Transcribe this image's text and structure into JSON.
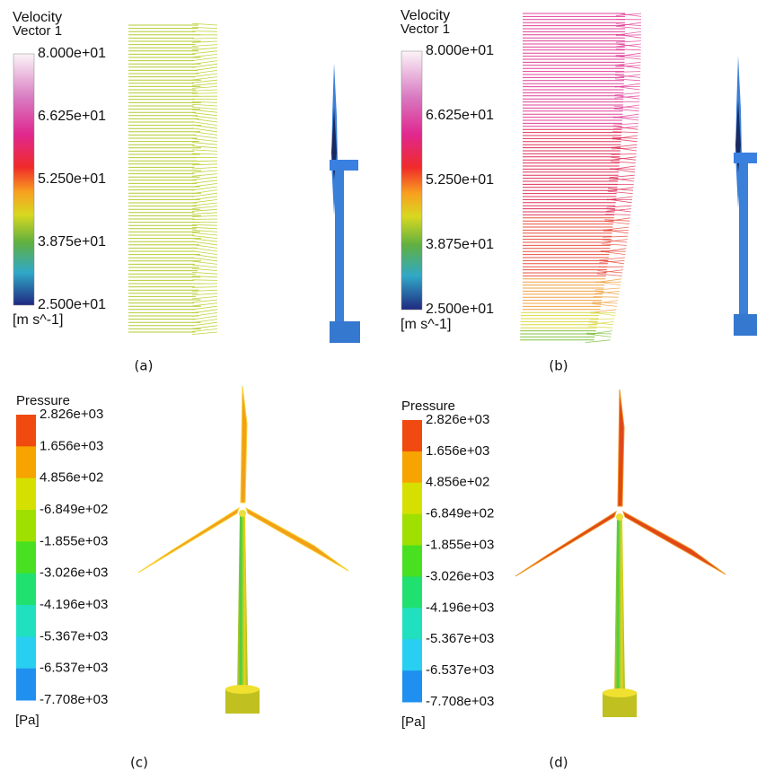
{
  "panels": [
    {
      "legend": {
        "title": [
          "Velocity",
          "Vector 1"
        ],
        "labels": [
          "8.000e+01",
          "6.625e+01",
          "5.250e+01",
          "3.875e+01",
          "2.500e+01"
        ],
        "unit": "[m s^-1]"
      },
      "caption": "(a)"
    },
    {
      "legend": {
        "title": [
          "Velocity",
          "Vector 1"
        ],
        "labels": [
          "8.000e+01",
          "6.625e+01",
          "5.250e+01",
          "3.875e+01",
          "2.500e+01"
        ],
        "unit": "[m s^-1]"
      },
      "caption": "(b)"
    },
    {
      "legend": {
        "title": [
          "Pressure"
        ],
        "labels": [
          "2.826e+03",
          "1.656e+03",
          "4.856e+02",
          "-6.849e+02",
          "-1.855e+03",
          "-3.026e+03",
          "-4.196e+03",
          "-5.367e+03",
          "-6.537e+03",
          "-7.708e+03"
        ],
        "unit": "[Pa]"
      },
      "caption": "(c)"
    },
    {
      "legend": {
        "title": [
          "Pressure"
        ],
        "labels": [
          "2.826e+03",
          "1.656e+03",
          "4.856e+02",
          "-6.849e+02",
          "-1.855e+03",
          "-3.026e+03",
          "-4.196e+03",
          "-5.367e+03",
          "-6.537e+03",
          "-7.708e+03"
        ],
        "unit": "[Pa]"
      },
      "caption": "(d)"
    }
  ]
}
